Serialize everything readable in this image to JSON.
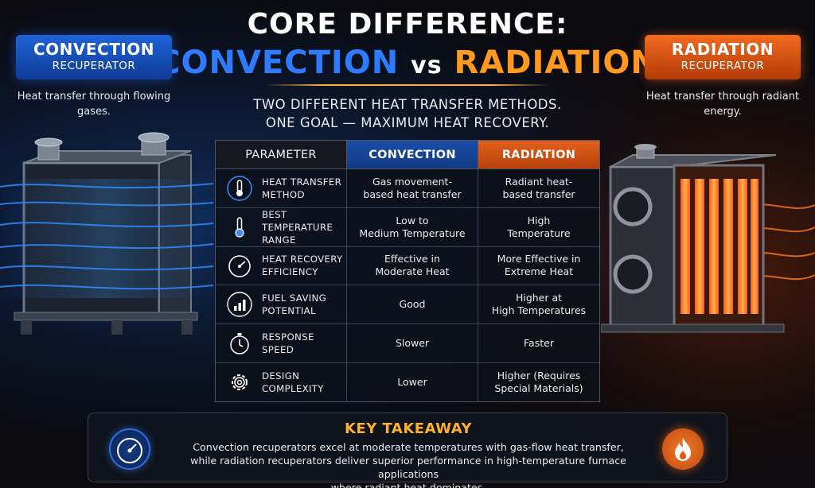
{
  "title": {
    "line1": "CORE DIFFERENCE:",
    "convection": "CONVECTION",
    "vs": "vs",
    "radiation": "RADIATION"
  },
  "subtitle": {
    "line1": "TWO DIFFERENT HEAT TRANSFER METHODS.",
    "line2": "ONE GOAL — MAXIMUM HEAT RECOVERY."
  },
  "left_badge": {
    "title": "CONVECTION",
    "subtitle": "RECUPERATOR",
    "description": "Heat transfer through flowing gases.",
    "color": "#1f63d8"
  },
  "right_badge": {
    "title": "RADIATION",
    "subtitle": "RECUPERATOR",
    "description": "Heat transfer through radiant energy.",
    "color": "#f26a1e"
  },
  "table": {
    "headers": {
      "parameter": "PARAMETER",
      "convection": "CONVECTION",
      "radiation": "RADIATION"
    },
    "rows": [
      {
        "icon": "thermometer-icon",
        "parameter": "HEAT TRANSFER\nMETHOD",
        "convection": "Gas movement-\nbased heat transfer",
        "radiation": "Radiant heat-\nbased transfer"
      },
      {
        "icon": "thermometer-icon",
        "parameter": "BEST TEMPERATURE\nRANGE",
        "convection": "Low to\nMedium Temperature",
        "radiation": "High\nTemperature"
      },
      {
        "icon": "gauge-icon",
        "parameter": "HEAT RECOVERY\nEFFICIENCY",
        "convection": "Effective in\nModerate Heat",
        "radiation": "More Effective in\nExtreme Heat"
      },
      {
        "icon": "bar-chart-icon",
        "parameter": "FUEL SAVING\nPOTENTIAL",
        "convection": "Good",
        "radiation": "Higher at\nHigh Temperatures"
      },
      {
        "icon": "stopwatch-icon",
        "parameter": "RESPONSE\nSPEED",
        "convection": "Slower",
        "radiation": "Faster"
      },
      {
        "icon": "gear-icon",
        "parameter": "DESIGN\nCOMPLEXITY",
        "convection": "Lower",
        "radiation": "Higher (Requires\nSpecial Materials)"
      }
    ]
  },
  "takeaway": {
    "title": "KEY TAKEAWAY",
    "body": "Convection recuperators excel at moderate temperatures with gas-flow heat transfer,\nwhile radiation recuperators deliver superior performance in high-temperature furnace applications\nwhere radiant heat dominates.",
    "left_icon": "gauge-icon",
    "right_icon": "flame-icon"
  },
  "colors": {
    "convection_accent": "#2f7bff",
    "radiation_accent": "#ff9a1f",
    "takeaway_title": "#ffb02e"
  }
}
